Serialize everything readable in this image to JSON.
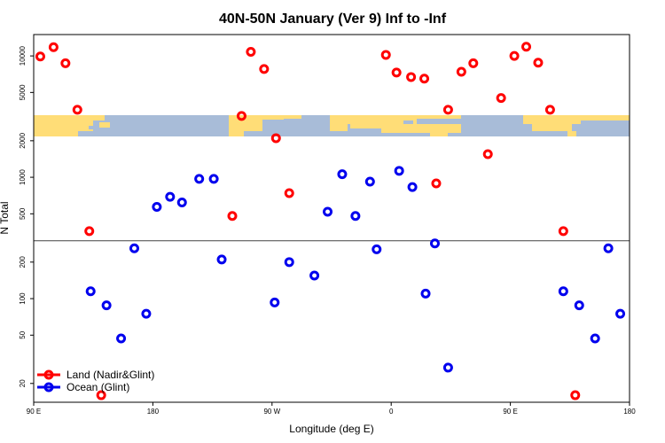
{
  "chart_data": {
    "type": "scatter",
    "title": "40N-50N January (Ver 9)   Inf to -Inf",
    "xlabel": "Longitude (deg E)",
    "ylabel": "N Total",
    "x_ticks": [
      {
        "value": 90,
        "label": "90 E"
      },
      {
        "value": 180,
        "label": "180"
      },
      {
        "value": 270,
        "label": "90 W"
      },
      {
        "value": 360,
        "label": "0"
      },
      {
        "value": 450,
        "label": "90 E"
      },
      {
        "value": 540,
        "label": "180"
      }
    ],
    "xlim": [
      90,
      540
    ],
    "y_scale": "log",
    "y_ticks": [
      {
        "value": 20,
        "label": "20"
      },
      {
        "value": 50,
        "label": "50"
      },
      {
        "value": 100,
        "label": "100"
      },
      {
        "value": 200,
        "label": "200"
      },
      {
        "value": 500,
        "label": "500"
      },
      {
        "value": 1000,
        "label": "1000"
      },
      {
        "value": 2000,
        "label": "2000"
      },
      {
        "value": 5000,
        "label": "5000"
      },
      {
        "value": 10000,
        "label": "10000"
      }
    ],
    "ylim": [
      14,
      15000
    ],
    "reference_line": 300,
    "colors": {
      "land": "#ff0000",
      "ocean": "#0000ee",
      "land_map": "#ffdd77",
      "water_map": "#a8bcd8"
    },
    "series": [
      {
        "name": "Land (Nadir&Glint)",
        "color": "#ff0000",
        "points": [
          {
            "x": 95,
            "y": 9900
          },
          {
            "x": 105,
            "y": 11800
          },
          {
            "x": 114,
            "y": 8700
          },
          {
            "x": 123,
            "y": 3600
          },
          {
            "x": 132,
            "y": 360
          },
          {
            "x": 141,
            "y": 16
          },
          {
            "x": 240,
            "y": 480
          },
          {
            "x": 247,
            "y": 3200
          },
          {
            "x": 254,
            "y": 10800
          },
          {
            "x": 264,
            "y": 7800
          },
          {
            "x": 273,
            "y": 2100
          },
          {
            "x": 283,
            "y": 740
          },
          {
            "x": 356,
            "y": 10200
          },
          {
            "x": 364,
            "y": 7300
          },
          {
            "x": 375,
            "y": 6700
          },
          {
            "x": 385,
            "y": 6500
          },
          {
            "x": 394,
            "y": 890
          },
          {
            "x": 403,
            "y": 3600
          },
          {
            "x": 413,
            "y": 7400
          },
          {
            "x": 422,
            "y": 8700
          },
          {
            "x": 433,
            "y": 1550
          },
          {
            "x": 443,
            "y": 4500
          },
          {
            "x": 453,
            "y": 10000
          },
          {
            "x": 462,
            "y": 11900
          },
          {
            "x": 471,
            "y": 8800
          },
          {
            "x": 480,
            "y": 3600
          },
          {
            "x": 490,
            "y": 360
          },
          {
            "x": 499,
            "y": 16
          }
        ]
      },
      {
        "name": "Ocean (Glint)",
        "color": "#0000ee",
        "points": [
          {
            "x": 133,
            "y": 115
          },
          {
            "x": 145,
            "y": 88
          },
          {
            "x": 156,
            "y": 47
          },
          {
            "x": 166,
            "y": 260
          },
          {
            "x": 175,
            "y": 75
          },
          {
            "x": 183,
            "y": 570
          },
          {
            "x": 193,
            "y": 690
          },
          {
            "x": 202,
            "y": 620
          },
          {
            "x": 215,
            "y": 970
          },
          {
            "x": 226,
            "y": 970
          },
          {
            "x": 232,
            "y": 210
          },
          {
            "x": 272,
            "y": 93
          },
          {
            "x": 283,
            "y": 200
          },
          {
            "x": 302,
            "y": 155
          },
          {
            "x": 312,
            "y": 520
          },
          {
            "x": 323,
            "y": 1060
          },
          {
            "x": 333,
            "y": 480
          },
          {
            "x": 344,
            "y": 920
          },
          {
            "x": 349,
            "y": 255
          },
          {
            "x": 366,
            "y": 1130
          },
          {
            "x": 376,
            "y": 830
          },
          {
            "x": 386,
            "y": 110
          },
          {
            "x": 393,
            "y": 285
          },
          {
            "x": 403,
            "y": 27
          },
          {
            "x": 490,
            "y": 115
          },
          {
            "x": 502,
            "y": 88
          },
          {
            "x": 514,
            "y": 47
          },
          {
            "x": 524,
            "y": 260
          },
          {
            "x": 533,
            "y": 75
          }
        ]
      }
    ],
    "legend": {
      "position": "bottom-left",
      "entries": [
        {
          "label": "Land (Nadir&Glint)",
          "color": "#ff0000"
        },
        {
          "label": "Ocean (Glint)",
          "color": "#0000ee"
        }
      ]
    }
  }
}
